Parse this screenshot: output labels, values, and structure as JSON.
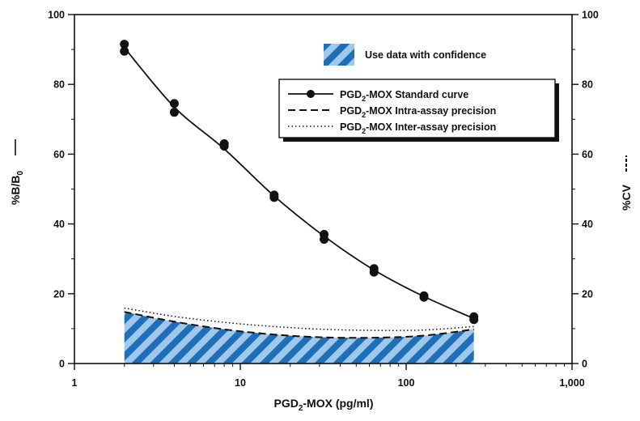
{
  "chart_data": {
    "type": "line",
    "x_axis": {
      "label": "PGD",
      "label_sub": "2",
      "label_suffix": "-MOX (pg/ml)",
      "scale": "log",
      "range": [
        1,
        1000
      ],
      "ticks": [
        {
          "value": 1,
          "label": "1"
        },
        {
          "value": 10,
          "label": "10"
        },
        {
          "value": 100,
          "label": "100"
        },
        {
          "value": 1000,
          "label": "1,000"
        }
      ]
    },
    "y_axis_left": {
      "label": "%B/B",
      "label_sub": "0",
      "label_marker": "solid",
      "range": [
        0,
        100
      ],
      "ticks": [
        0,
        20,
        40,
        60,
        80,
        100
      ]
    },
    "y_axis_right": {
      "label": "%CV",
      "label_marker": "dashed",
      "range": [
        0,
        100
      ],
      "ticks": [
        0,
        20,
        40,
        60,
        80,
        100
      ]
    },
    "series": [
      {
        "name": "PGD₂-MOX Standard curve",
        "name_prefix": "PGD",
        "name_sub": "2",
        "name_suffix": "-MOX Standard curve",
        "style": "solid-markers",
        "axis": "left",
        "points": [
          {
            "x": 2,
            "y": 91.5
          },
          {
            "x": 2,
            "y": 89.5
          },
          {
            "x": 4,
            "y": 74.5
          },
          {
            "x": 4,
            "y": 72.0
          },
          {
            "x": 8,
            "y": 63.0
          },
          {
            "x": 8,
            "y": 62.3
          },
          {
            "x": 16,
            "y": 48.3
          },
          {
            "x": 16,
            "y": 47.6
          },
          {
            "x": 32,
            "y": 37.0
          },
          {
            "x": 32,
            "y": 35.6
          },
          {
            "x": 64,
            "y": 27.2
          },
          {
            "x": 64,
            "y": 26.2
          },
          {
            "x": 128,
            "y": 19.4
          },
          {
            "x": 128,
            "y": 19.0
          },
          {
            "x": 256,
            "y": 13.4
          },
          {
            "x": 256,
            "y": 12.6
          }
        ],
        "curve": [
          {
            "x": 2,
            "y": 90.5
          },
          {
            "x": 4,
            "y": 73.5
          },
          {
            "x": 8,
            "y": 61.5
          },
          {
            "x": 16,
            "y": 48.0
          },
          {
            "x": 32,
            "y": 36.5
          },
          {
            "x": 64,
            "y": 26.8
          },
          {
            "x": 128,
            "y": 19.2
          },
          {
            "x": 256,
            "y": 12.9
          }
        ]
      },
      {
        "name": "PGD₂-MOX Intra-assay precision",
        "name_prefix": "PGD",
        "name_sub": "2",
        "name_suffix": "-MOX Intra-assay precision",
        "style": "dashed",
        "axis": "right",
        "points": [
          {
            "x": 2,
            "y": 14.8
          },
          {
            "x": 4,
            "y": 12.0
          },
          {
            "x": 8,
            "y": 9.8
          },
          {
            "x": 16,
            "y": 8.3
          },
          {
            "x": 32,
            "y": 7.5
          },
          {
            "x": 64,
            "y": 7.4
          },
          {
            "x": 128,
            "y": 8.0
          },
          {
            "x": 256,
            "y": 9.8
          }
        ]
      },
      {
        "name": "PGD₂-MOX Inter-assay precision",
        "name_prefix": "PGD",
        "name_sub": "2",
        "name_suffix": "-MOX Inter-assay precision",
        "style": "dotted",
        "axis": "right",
        "points": [
          {
            "x": 2,
            "y": 15.9
          },
          {
            "x": 4,
            "y": 13.5
          },
          {
            "x": 8,
            "y": 11.8
          },
          {
            "x": 16,
            "y": 10.6
          },
          {
            "x": 32,
            "y": 9.8
          },
          {
            "x": 64,
            "y": 9.5
          },
          {
            "x": 128,
            "y": 9.6
          },
          {
            "x": 256,
            "y": 10.6
          }
        ]
      }
    ],
    "confidence_region": {
      "label": "Use data with confidence",
      "x_range": [
        2,
        256
      ],
      "upper_follows": "PGD₂-MOX Intra-assay precision"
    },
    "legend_position": "top-right",
    "grid": false
  },
  "colors": {
    "hatch_light": "#9fc8ec",
    "hatch_dark": "#1e6fb8",
    "line": "#111111"
  }
}
